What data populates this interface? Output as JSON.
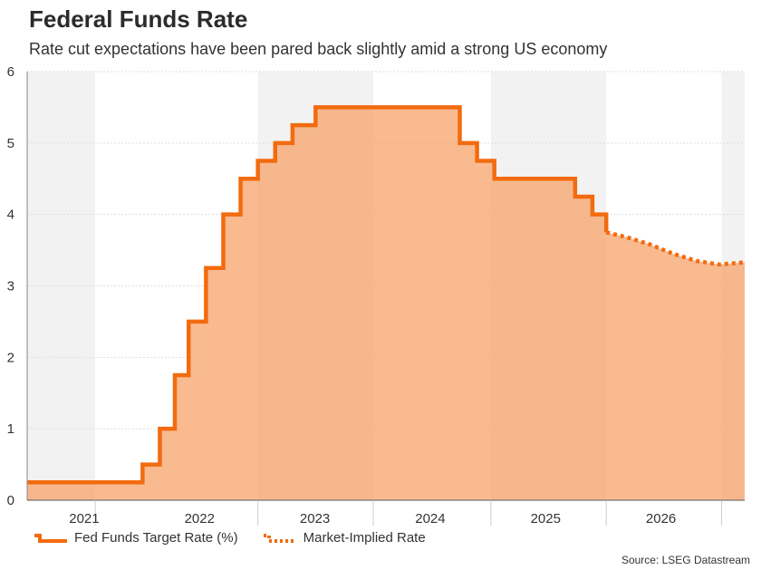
{
  "header": {
    "title": "Federal Funds Rate",
    "subtitle": "Rate cut expectations have been pared back slightly amid a strong US economy"
  },
  "legend": {
    "target": "Fed Funds Target Rate (%)",
    "implied": "Market-Implied Rate"
  },
  "source": "Source: LSEG Datastream",
  "colors": {
    "line": "#f26b0f",
    "fill": "#f7a36b",
    "band": "#f2f2f2",
    "grid": "#dddddd"
  },
  "chart_data": {
    "type": "line",
    "title": "Federal Funds Rate",
    "xlabel": "",
    "ylabel": "",
    "xlim": [
      2020.6,
      2026.82
    ],
    "ylim": [
      0,
      6
    ],
    "yticks": [
      0,
      1,
      2,
      3,
      4,
      5,
      6
    ],
    "year_labels": [
      {
        "label": "2021",
        "x": 2021.0
      },
      {
        "label": "2022",
        "x": 2022.0
      },
      {
        "label": "2023",
        "x": 2023.0
      },
      {
        "label": "2024",
        "x": 2024.0
      },
      {
        "label": "2025",
        "x": 2025.0
      },
      {
        "label": "2026",
        "x": 2026.0
      }
    ],
    "shaded_bands": [
      [
        2020.6,
        2021.19
      ],
      [
        2022.6,
        2023.6
      ],
      [
        2024.62,
        2025.62
      ],
      [
        2026.62,
        2026.82
      ]
    ],
    "series": [
      {
        "name": "Fed Funds Target Rate (%)",
        "style": "solid-step",
        "x": [
          2020.6,
          2021.4,
          2021.6,
          2021.75,
          2021.88,
          2022.0,
          2022.15,
          2022.3,
          2022.45,
          2022.6,
          2022.75,
          2022.9,
          2023.1,
          2023.35,
          2024.35,
          2024.5,
          2024.65,
          2025.35,
          2025.5,
          2025.62
        ],
        "values": [
          0.25,
          0.25,
          0.5,
          1.0,
          1.75,
          2.5,
          3.25,
          4.0,
          4.5,
          4.75,
          5.0,
          5.25,
          5.5,
          5.5,
          5.0,
          4.75,
          4.5,
          4.25,
          4.0,
          3.75
        ]
      },
      {
        "name": "Market-Implied Rate",
        "style": "dotted",
        "x": [
          2025.62,
          2025.8,
          2026.0,
          2026.2,
          2026.4,
          2026.6,
          2026.82
        ],
        "values": [
          3.75,
          3.68,
          3.58,
          3.45,
          3.35,
          3.3,
          3.33
        ]
      }
    ]
  }
}
